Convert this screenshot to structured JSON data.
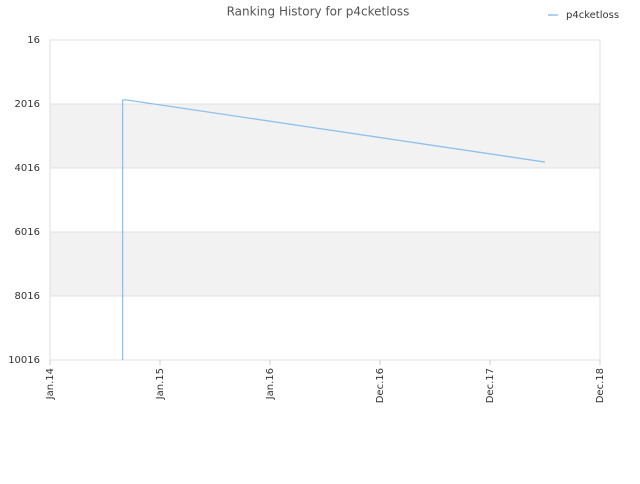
{
  "chart_data": {
    "type": "line",
    "title": "Ranking History for p4cketloss",
    "x": [
      0.66,
      0.66,
      0.68,
      4.5
    ],
    "series": [
      {
        "name": "p4cketloss",
        "color": "#8ec1ee",
        "values": [
          10016,
          1900,
          1880,
          3830
        ]
      }
    ],
    "xlim": [
      0,
      5
    ],
    "xticks": [
      {
        "value": 0,
        "label": "Jan.14"
      },
      {
        "value": 1,
        "label": "Jan.15"
      },
      {
        "value": 2,
        "label": "Jan.16"
      },
      {
        "value": 3,
        "label": "Dec.16"
      },
      {
        "value": 4,
        "label": "Dec.17"
      },
      {
        "value": 5,
        "label": "Dec.18"
      }
    ],
    "ylim": [
      10016,
      16
    ],
    "yticks": [
      16,
      2016,
      4016,
      6016,
      8016,
      10016
    ],
    "grid": true,
    "legend": "top-right"
  }
}
